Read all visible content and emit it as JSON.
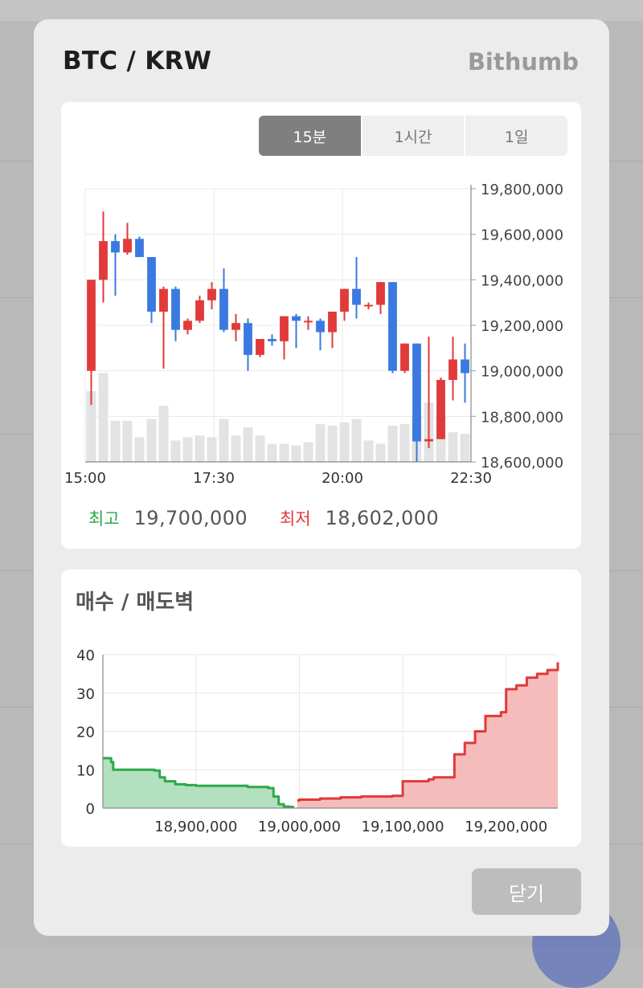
{
  "modal": {
    "title": "BTC / KRW",
    "exchange": "Bithumb",
    "close_label": "닫기"
  },
  "timeframes": {
    "items": [
      "15분",
      "1시간",
      "1일"
    ],
    "active": 0
  },
  "stats": {
    "high_label": "최고",
    "high_value": "19,700,000",
    "low_label": "최저",
    "low_value": "18,602,000"
  },
  "depth": {
    "title": "매수 / 매도벽"
  },
  "colors": {
    "up": "#e03a3a",
    "down": "#3a7ae0",
    "volume": "#e3e3e3",
    "bid": "#2ea84a",
    "bid_fill": "#b3e0bf",
    "ask": "#e03a3a",
    "ask_fill": "#f6bcbc"
  },
  "chart_data": [
    {
      "type": "candlestick",
      "interval": "15분",
      "x_tick_labels": [
        "15:00",
        "17:30",
        "20:00",
        "22:30"
      ],
      "y_tick_labels": [
        "19,800,000",
        "19,600,000",
        "19,400,000",
        "19,200,000",
        "19,000,000",
        "18,800,000",
        "18,600,000"
      ],
      "ylim": [
        18600000,
        19800000
      ],
      "grid": true,
      "candles": [
        {
          "o": 19000000,
          "h": 19400000,
          "l": 18850000,
          "c": 19400000,
          "v": 0.43
        },
        {
          "o": 19400000,
          "h": 19700000,
          "l": 19300000,
          "c": 19570000,
          "v": 0.54
        },
        {
          "o": 19570000,
          "h": 19600000,
          "l": 19330000,
          "c": 19520000,
          "v": 0.25
        },
        {
          "o": 19520000,
          "h": 19650000,
          "l": 19510000,
          "c": 19580000,
          "v": 0.25
        },
        {
          "o": 19580000,
          "h": 19590000,
          "l": 19500000,
          "c": 19500000,
          "v": 0.15
        },
        {
          "o": 19500000,
          "h": 19500000,
          "l": 19210000,
          "c": 19260000,
          "v": 0.26
        },
        {
          "o": 19260000,
          "h": 19370000,
          "l": 19010000,
          "c": 19360000,
          "v": 0.34
        },
        {
          "o": 19360000,
          "h": 19370000,
          "l": 19130000,
          "c": 19180000,
          "v": 0.13
        },
        {
          "o": 19180000,
          "h": 19230000,
          "l": 19160000,
          "c": 19220000,
          "v": 0.15
        },
        {
          "o": 19220000,
          "h": 19330000,
          "l": 19210000,
          "c": 19310000,
          "v": 0.16
        },
        {
          "o": 19310000,
          "h": 19390000,
          "l": 19270000,
          "c": 19360000,
          "v": 0.15
        },
        {
          "o": 19360000,
          "h": 19450000,
          "l": 19170000,
          "c": 19180000,
          "v": 0.26
        },
        {
          "o": 19180000,
          "h": 19250000,
          "l": 19130000,
          "c": 19210000,
          "v": 0.16
        },
        {
          "o": 19210000,
          "h": 19230000,
          "l": 19000000,
          "c": 19070000,
          "v": 0.21
        },
        {
          "o": 19070000,
          "h": 19140000,
          "l": 19060000,
          "c": 19140000,
          "v": 0.16
        },
        {
          "o": 19140000,
          "h": 19160000,
          "l": 19110000,
          "c": 19130000,
          "v": 0.11
        },
        {
          "o": 19130000,
          "h": 19240000,
          "l": 19050000,
          "c": 19240000,
          "v": 0.11
        },
        {
          "o": 19240000,
          "h": 19250000,
          "l": 19100000,
          "c": 19220000,
          "v": 0.1
        },
        {
          "o": 19220000,
          "h": 19240000,
          "l": 19180000,
          "c": 19220000,
          "v": 0.12
        },
        {
          "o": 19220000,
          "h": 19230000,
          "l": 19090000,
          "c": 19170000,
          "v": 0.23
        },
        {
          "o": 19170000,
          "h": 19260000,
          "l": 19100000,
          "c": 19260000,
          "v": 0.22
        },
        {
          "o": 19260000,
          "h": 19360000,
          "l": 19220000,
          "c": 19360000,
          "v": 0.24
        },
        {
          "o": 19360000,
          "h": 19500000,
          "l": 19230000,
          "c": 19290000,
          "v": 0.26
        },
        {
          "o": 19290000,
          "h": 19300000,
          "l": 19270000,
          "c": 19290000,
          "v": 0.13
        },
        {
          "o": 19290000,
          "h": 19390000,
          "l": 19250000,
          "c": 19390000,
          "v": 0.11
        },
        {
          "o": 19390000,
          "h": 19390000,
          "l": 18990000,
          "c": 19000000,
          "v": 0.22
        },
        {
          "o": 19000000,
          "h": 19120000,
          "l": 18990000,
          "c": 19120000,
          "v": 0.23
        },
        {
          "o": 19120000,
          "h": 19120000,
          "l": 18600000,
          "c": 18690000,
          "v": 0.28
        },
        {
          "o": 18690000,
          "h": 19150000,
          "l": 18660000,
          "c": 18700000,
          "v": 0.36
        },
        {
          "o": 18700000,
          "h": 18970000,
          "l": 18700000,
          "c": 18960000,
          "v": 0.28
        },
        {
          "o": 18960000,
          "h": 19150000,
          "l": 18870000,
          "c": 19050000,
          "v": 0.18
        },
        {
          "o": 19050000,
          "h": 19120000,
          "l": 18860000,
          "c": 18990000,
          "v": 0.17
        }
      ]
    },
    {
      "type": "area",
      "title": "매수 / 매도벽",
      "x_tick_labels": [
        "18,900,000",
        "19,000,000",
        "19,100,000",
        "19,200,000"
      ],
      "y_tick_labels": [
        "40",
        "30",
        "20",
        "10",
        "0"
      ],
      "xlim": [
        18810000,
        19250000
      ],
      "ylim": [
        0,
        40
      ],
      "grid": true,
      "series": [
        {
          "side": "bid",
          "x": [
            18810000,
            18818000,
            18820000,
            18830000,
            18860000,
            18865000,
            18870000,
            18880000,
            18890000,
            18900000,
            18930000,
            18950000,
            18970000,
            18975000,
            18980000,
            18985000,
            18990000,
            18995000
          ],
          "values": [
            13,
            12,
            10,
            10,
            9.8,
            8,
            7,
            6.2,
            6,
            5.8,
            5.8,
            5.5,
            5.2,
            3,
            1,
            0.4,
            0.3,
            0.3
          ]
        },
        {
          "side": "ask",
          "x": [
            18998000,
            19000000,
            19020000,
            19040000,
            19060000,
            19075000,
            19090000,
            19100000,
            19125000,
            19130000,
            19150000,
            19160000,
            19170000,
            19180000,
            19195000,
            19200000,
            19210000,
            19220000,
            19230000,
            19240000,
            19250000
          ],
          "values": [
            2,
            2.2,
            2.5,
            2.8,
            3,
            3,
            3.2,
            7,
            7.5,
            8,
            14,
            17,
            20,
            24,
            25,
            31,
            32,
            34,
            35,
            36,
            38
          ]
        }
      ]
    }
  ]
}
